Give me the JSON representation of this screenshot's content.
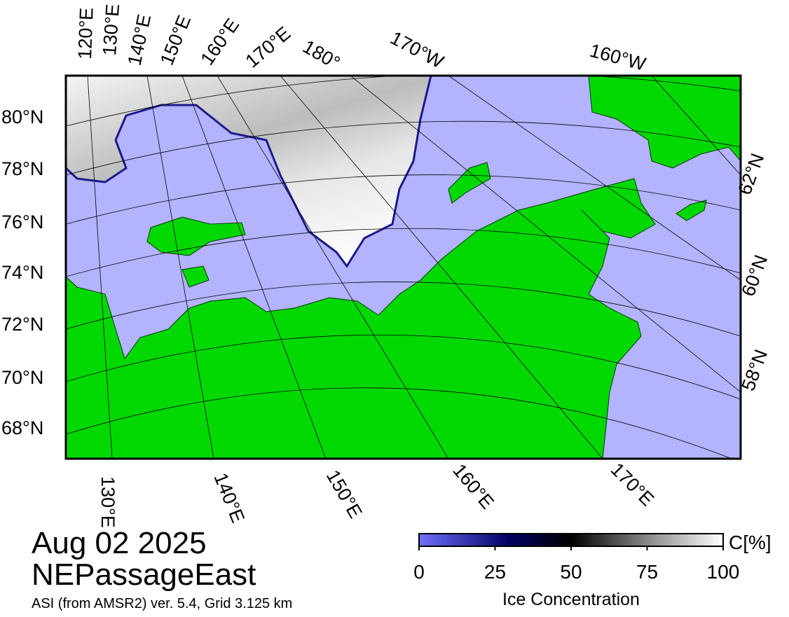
{
  "map": {
    "top_labels": [
      "120°E",
      "130°E",
      "140°E",
      "150°E",
      "160°E",
      "170°E",
      "180°",
      "170°W",
      "160°W"
    ],
    "left_labels": [
      "80°N",
      "78°N",
      "76°N",
      "74°N",
      "72°N",
      "70°N",
      "68°N"
    ],
    "right_labels": [
      "62°N",
      "60°N",
      "58°N"
    ],
    "bottom_labels": [
      "130°E",
      "140°E",
      "150°E",
      "160°E",
      "170°E"
    ]
  },
  "date": "Aug 02 2025",
  "region": "NEPassageEast",
  "source": "ASI (from AMSR2) ver. 5.4,  Grid 3.125 km",
  "colorbar": {
    "range": [
      0,
      100
    ],
    "ticks": [
      0,
      25,
      50,
      75,
      100
    ],
    "unit": "C[%]",
    "label": "Ice Concentration"
  }
}
